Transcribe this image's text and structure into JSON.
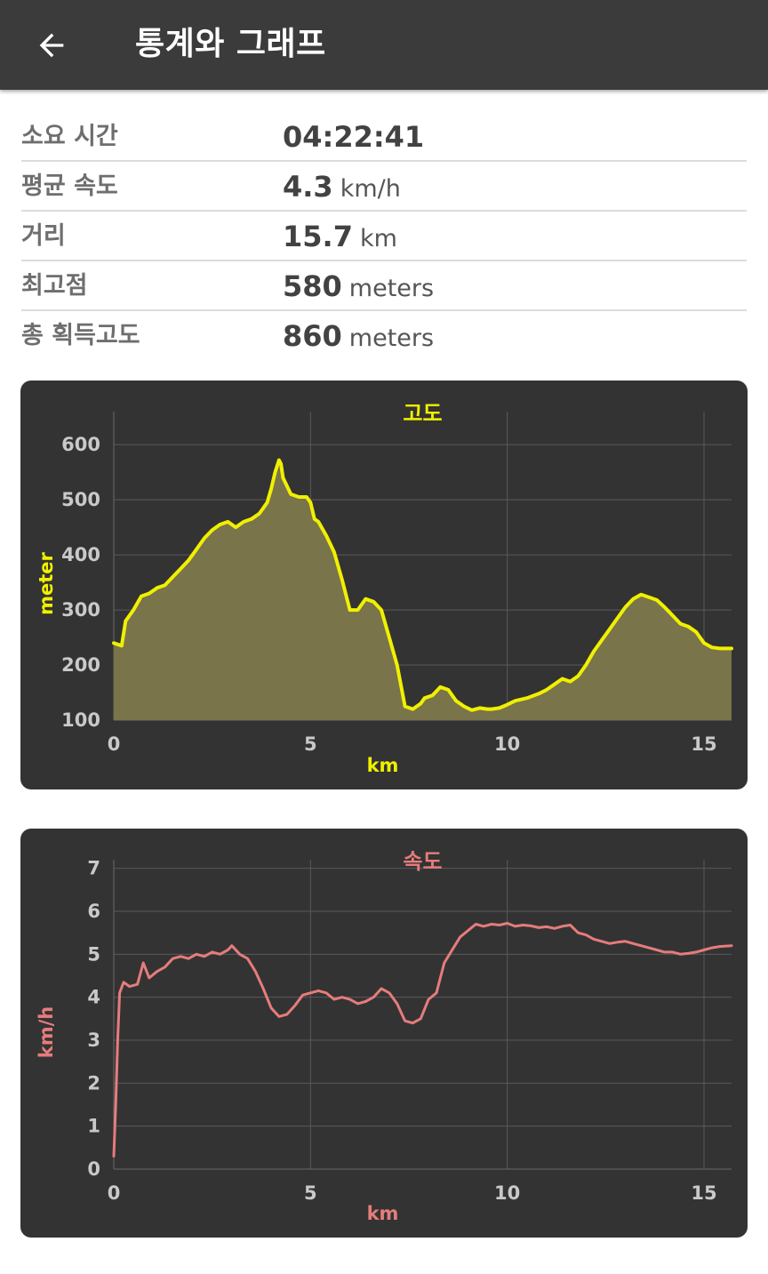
{
  "header": {
    "title": "통계와 그래프",
    "back_icon": "arrow-left-icon"
  },
  "stats": [
    {
      "label": "소요 시간",
      "value": "04:22:41",
      "unit": ""
    },
    {
      "label": "평균 속도",
      "value": "4.3",
      "unit": "km/h"
    },
    {
      "label": "거리",
      "value": "15.7",
      "unit": "km"
    },
    {
      "label": "최고점",
      "value": "580",
      "unit": "meters"
    },
    {
      "label": "총 획득고도",
      "value": "860",
      "unit": "meters"
    }
  ],
  "chart_data": [
    {
      "type": "area",
      "title": "고도",
      "xlabel": "km",
      "ylabel": "meter",
      "color": "#f0f000",
      "fill": "#79744a",
      "xlim": [
        0,
        15.7
      ],
      "ylim": [
        100,
        660
      ],
      "xticks": [
        "0",
        "5",
        "10",
        "15"
      ],
      "yticks": [
        "100",
        "200",
        "300",
        "400",
        "500",
        "600"
      ],
      "grid": true,
      "x": [
        0,
        0.2,
        0.3,
        0.5,
        0.7,
        0.9,
        1.1,
        1.3,
        1.5,
        1.7,
        1.9,
        2.1,
        2.3,
        2.5,
        2.7,
        2.9,
        3.0,
        3.1,
        3.3,
        3.5,
        3.7,
        3.9,
        4.0,
        4.1,
        4.2,
        4.25,
        4.3,
        4.5,
        4.7,
        4.9,
        5.0,
        5.1,
        5.2,
        5.4,
        5.6,
        5.8,
        6.0,
        6.2,
        6.3,
        6.4,
        6.6,
        6.8,
        7.0,
        7.2,
        7.4,
        7.6,
        7.8,
        7.9,
        8.1,
        8.3,
        8.5,
        8.6,
        8.7,
        8.9,
        9.1,
        9.3,
        9.5,
        9.6,
        9.8,
        10.0,
        10.2,
        10.5,
        10.8,
        11.0,
        11.2,
        11.4,
        11.6,
        11.8,
        12.0,
        12.2,
        12.4,
        12.6,
        12.8,
        13.0,
        13.2,
        13.4,
        13.6,
        13.8,
        14.0,
        14.2,
        14.4,
        14.6,
        14.8,
        15.0,
        15.2,
        15.4,
        15.7
      ],
      "y": [
        240,
        235,
        280,
        300,
        325,
        330,
        340,
        345,
        360,
        375,
        390,
        410,
        430,
        445,
        455,
        460,
        455,
        450,
        460,
        465,
        475,
        495,
        520,
        550,
        572,
        565,
        540,
        510,
        505,
        505,
        495,
        465,
        460,
        435,
        405,
        355,
        300,
        300,
        310,
        320,
        315,
        300,
        250,
        200,
        125,
        120,
        130,
        140,
        145,
        160,
        155,
        145,
        135,
        125,
        118,
        122,
        120,
        120,
        122,
        128,
        135,
        140,
        148,
        155,
        165,
        175,
        170,
        180,
        200,
        225,
        245,
        265,
        285,
        305,
        320,
        328,
        323,
        318,
        305,
        290,
        275,
        270,
        260,
        240,
        232,
        230,
        230
      ]
    },
    {
      "type": "line",
      "title": "속도",
      "xlabel": "km",
      "ylabel": "km/h",
      "color": "#e67c7c",
      "xlim": [
        0,
        15.7
      ],
      "ylim": [
        0,
        7.2
      ],
      "xticks": [
        "0",
        "5",
        "10",
        "15"
      ],
      "yticks": [
        "0",
        "1",
        "2",
        "3",
        "4",
        "5",
        "6",
        "7"
      ],
      "grid": true,
      "x": [
        0,
        0.05,
        0.1,
        0.15,
        0.25,
        0.4,
        0.6,
        0.75,
        0.9,
        1.1,
        1.3,
        1.5,
        1.7,
        1.9,
        2.1,
        2.3,
        2.5,
        2.7,
        2.9,
        3.0,
        3.2,
        3.4,
        3.6,
        3.8,
        4.0,
        4.2,
        4.4,
        4.6,
        4.8,
        5.0,
        5.2,
        5.4,
        5.6,
        5.8,
        6.0,
        6.2,
        6.4,
        6.6,
        6.8,
        7.0,
        7.2,
        7.4,
        7.6,
        7.8,
        8.0,
        8.2,
        8.4,
        8.6,
        8.8,
        9.0,
        9.2,
        9.4,
        9.6,
        9.8,
        10.0,
        10.2,
        10.4,
        10.6,
        10.8,
        11.0,
        11.2,
        11.4,
        11.6,
        11.8,
        12.0,
        12.2,
        12.4,
        12.6,
        12.8,
        13.0,
        13.2,
        13.4,
        13.6,
        13.8,
        14.0,
        14.2,
        14.4,
        14.6,
        14.8,
        15.0,
        15.2,
        15.4,
        15.7
      ],
      "y": [
        0.3,
        1.5,
        3.0,
        4.1,
        4.35,
        4.25,
        4.3,
        4.8,
        4.45,
        4.6,
        4.7,
        4.9,
        4.95,
        4.9,
        5.0,
        4.95,
        5.05,
        5.0,
        5.1,
        5.2,
        5.0,
        4.9,
        4.6,
        4.2,
        3.75,
        3.55,
        3.6,
        3.8,
        4.05,
        4.1,
        4.15,
        4.1,
        3.95,
        4.0,
        3.95,
        3.85,
        3.9,
        4.0,
        4.2,
        4.1,
        3.85,
        3.45,
        3.4,
        3.5,
        3.95,
        4.1,
        4.8,
        5.1,
        5.4,
        5.55,
        5.7,
        5.65,
        5.7,
        5.68,
        5.72,
        5.65,
        5.68,
        5.66,
        5.62,
        5.64,
        5.6,
        5.65,
        5.68,
        5.5,
        5.45,
        5.35,
        5.3,
        5.25,
        5.28,
        5.3,
        5.25,
        5.2,
        5.15,
        5.1,
        5.05,
        5.05,
        5.0,
        5.02,
        5.05,
        5.1,
        5.15,
        5.18,
        5.2
      ]
    }
  ]
}
